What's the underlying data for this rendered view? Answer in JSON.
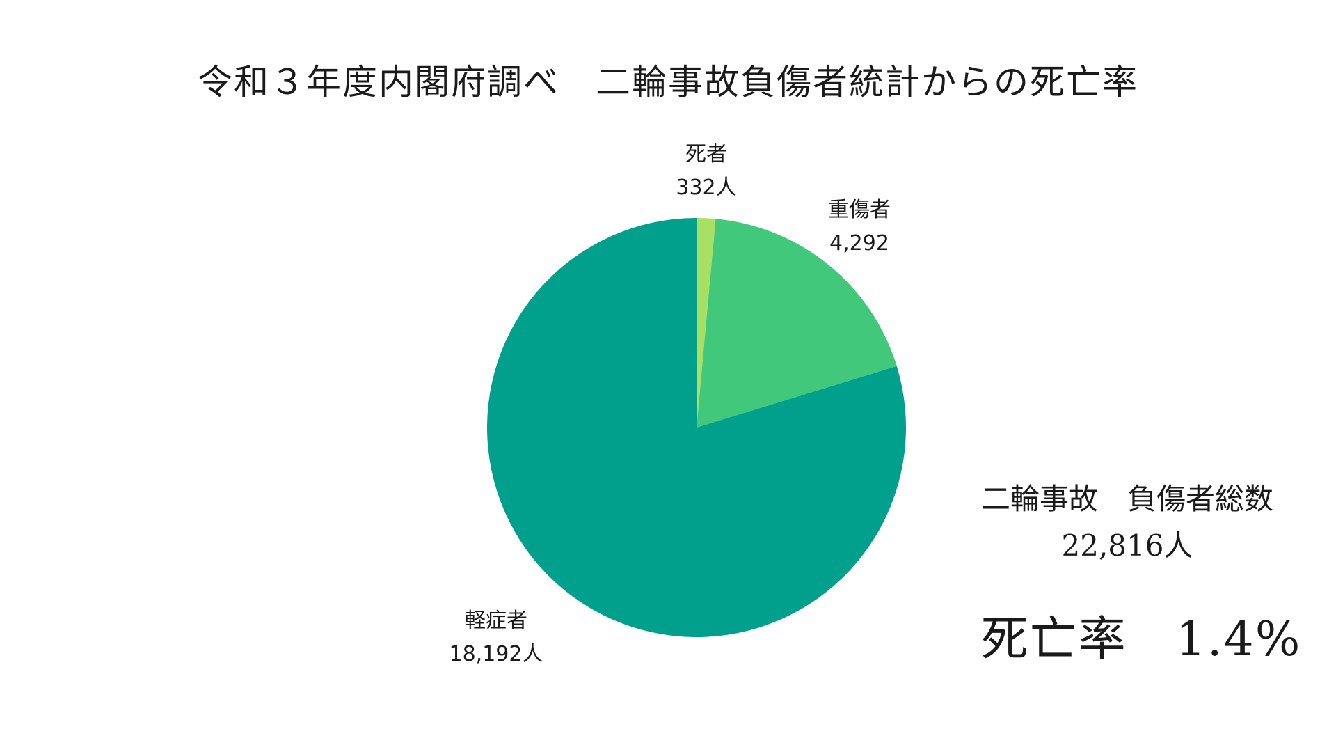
{
  "chart_data": {
    "type": "pie",
    "title": "令和３年度内閣府調べ　二輪事故負傷者統計からの死亡率",
    "slices": [
      {
        "name": "死者",
        "value": 332,
        "value_label": "332人",
        "color": "#a8e063"
      },
      {
        "name": "重傷者",
        "value": 4292,
        "value_label": "4,292",
        "color": "#42c87a"
      },
      {
        "name": "軽症者",
        "value": 18192,
        "value_label": "18,192人",
        "color": "#00a08c"
      }
    ]
  },
  "summary": {
    "heading": "二輪事故　負傷者総数",
    "total": "22,816人",
    "rate": "死亡率　1.4%"
  }
}
